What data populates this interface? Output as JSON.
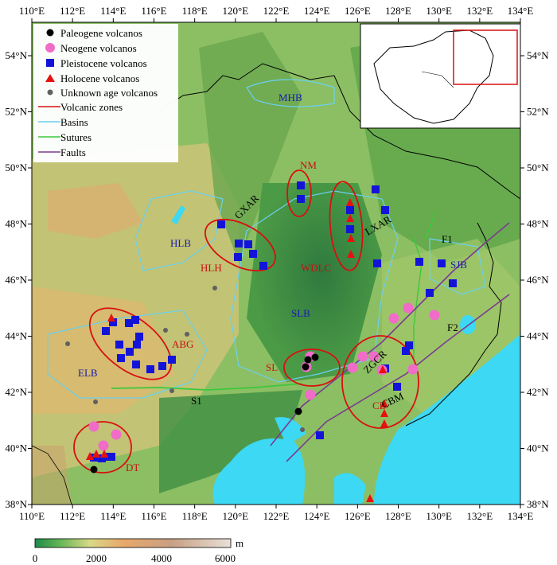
{
  "lon_ticks": [
    "110°E",
    "112°E",
    "114°E",
    "116°E",
    "118°E",
    "120°E",
    "122°E",
    "124°E",
    "126°E",
    "128°E",
    "130°E",
    "132°E",
    "134°E"
  ],
  "lat_ticks": [
    "54°N",
    "52°N",
    "50°N",
    "48°N",
    "46°N",
    "44°N",
    "42°N",
    "40°N",
    "38°N"
  ],
  "legend": {
    "paleogene": "Paleogene volcanos",
    "neogene": "Neogene volcanos",
    "pleistocene": "Pleistocene volcanos",
    "holocene": "Holocene volcanos",
    "unknown": "Unknown age volcanos",
    "zones": "Volcanic zones",
    "basins": "Basins",
    "sutures": "Sutures",
    "faults": "Faults"
  },
  "colorbar": {
    "ticks": [
      "0",
      "2000",
      "4000",
      "6000"
    ],
    "unit": "m"
  },
  "labels": {
    "MHB": "MHB",
    "NM": "NM",
    "GXAR": "GXAR",
    "LXAR": "LXAR",
    "HLB": "HLB",
    "HLH": "HLH",
    "WDLC": "WDLC",
    "F1": "F1",
    "SJB": "SJB",
    "SLB": "SLB",
    "F2": "F2",
    "ABG": "ABG",
    "ZGCR": "ZGCR",
    "SL": "SL",
    "ELB": "ELB",
    "CB": "CB",
    "CBM": "CBM",
    "S1": "S1",
    "DT": "DT"
  },
  "colors": {
    "paleogene": "#000000",
    "neogene": "#f06cc8",
    "pleistocene": "#1414d8",
    "holocene": "#e81010",
    "unknown": "#606060",
    "zones": "#d81010",
    "basins": "#6ad0f0",
    "sutures": "#3cc83c",
    "faults": "#7a3c90",
    "sea": "#3cd8f4"
  }
}
